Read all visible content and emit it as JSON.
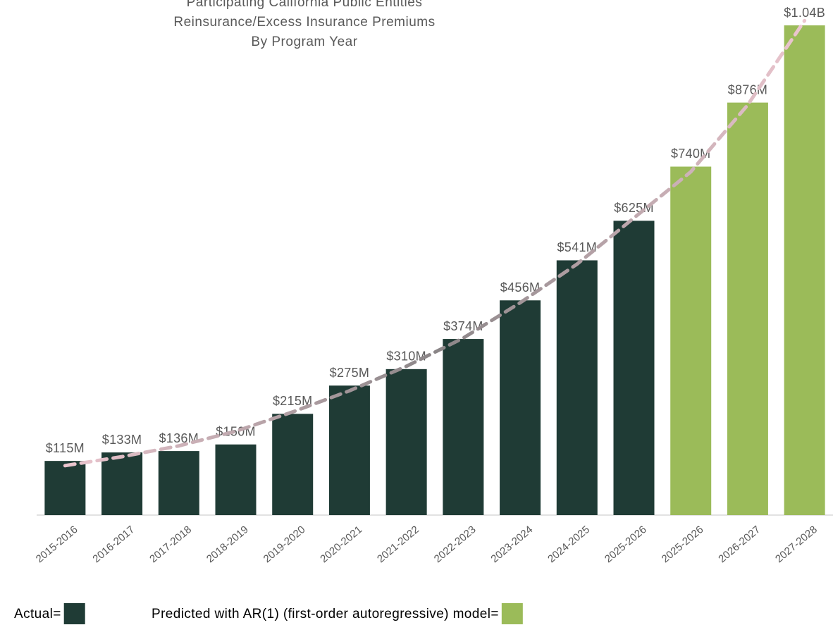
{
  "chart_data": {
    "type": "bar",
    "title": [
      "Participating California Public Entities",
      "Reinsurance/Excess Insurance Premiums",
      "By Program Year"
    ],
    "categories": [
      "2015-2016",
      "2016-2017",
      "2017-2018",
      "2018-2019",
      "2019-2020",
      "2020-2021",
      "2021-2022",
      "2022-2023",
      "2023-2024",
      "2024-2025",
      "2025-2026",
      "2025-2026",
      "2026-2027",
      "2027-2028"
    ],
    "series": [
      {
        "name": "Actual=",
        "color": "#1f3b35",
        "values": [
          115,
          133,
          136,
          150,
          215,
          275,
          310,
          374,
          456,
          541,
          625,
          null,
          null,
          null
        ]
      },
      {
        "name": "Predicted with AR(1) (first-order autoregressive) model=",
        "color": "#9bbb59",
        "values": [
          null,
          null,
          null,
          null,
          null,
          null,
          null,
          null,
          null,
          null,
          null,
          740,
          876,
          1040
        ]
      }
    ],
    "value_labels": [
      "$115M",
      "$133M",
      "$136M",
      "$150M",
      "$215M",
      "$275M",
      "$310M",
      "$374M",
      "$456M",
      "$541M",
      "$625M",
      "$740M",
      "$876M",
      "$1.04B"
    ],
    "trendline": [
      105,
      124,
      147,
      178,
      219,
      264,
      316,
      376,
      451,
      533,
      631,
      729,
      871,
      1050
    ],
    "trendline_colors": [
      "#ecc6cf",
      "#8a8587",
      "#ecc6cf"
    ],
    "ylim": [
      0,
      1040
    ]
  }
}
